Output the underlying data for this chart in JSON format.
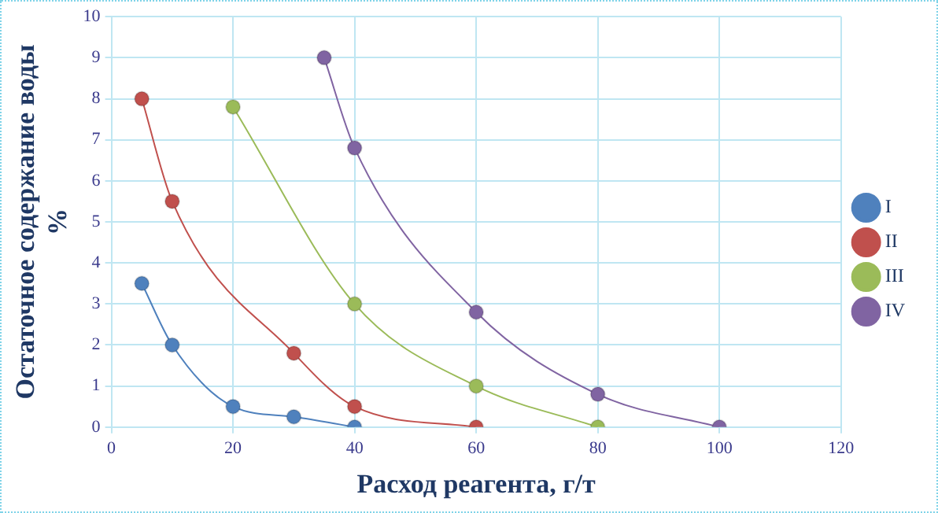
{
  "chart_data": {
    "type": "line",
    "xlabel": "Расход реагента, г/т",
    "ylabel": "Остаточное содержание воды\n%",
    "xlim": [
      0,
      120
    ],
    "xticks": [
      0,
      20,
      40,
      60,
      80,
      100,
      120
    ],
    "ylim": [
      0,
      10
    ],
    "yticks": [
      0,
      1,
      2,
      3,
      4,
      5,
      6,
      7,
      8,
      9,
      10
    ],
    "grid": true,
    "legend": "right",
    "marker": "circle",
    "line_style": "solid",
    "series": [
      {
        "name": "I",
        "color": "#4f81bd",
        "x": [
          5,
          10,
          20,
          30,
          40
        ],
        "values": [
          3.5,
          2,
          0.5,
          0.25,
          0
        ]
      },
      {
        "name": "II",
        "color": "#c0504d",
        "x": [
          5,
          10,
          30,
          40,
          60
        ],
        "values": [
          8,
          5.5,
          1.8,
          0.5,
          0
        ]
      },
      {
        "name": "III",
        "color": "#9bbb59",
        "x": [
          20,
          40,
          60,
          80
        ],
        "values": [
          7.8,
          3,
          1,
          0
        ]
      },
      {
        "name": "IV",
        "color": "#8064a2",
        "x": [
          35,
          40,
          60,
          80,
          100
        ],
        "values": [
          9,
          6.8,
          2.8,
          0.8,
          0
        ]
      }
    ]
  }
}
